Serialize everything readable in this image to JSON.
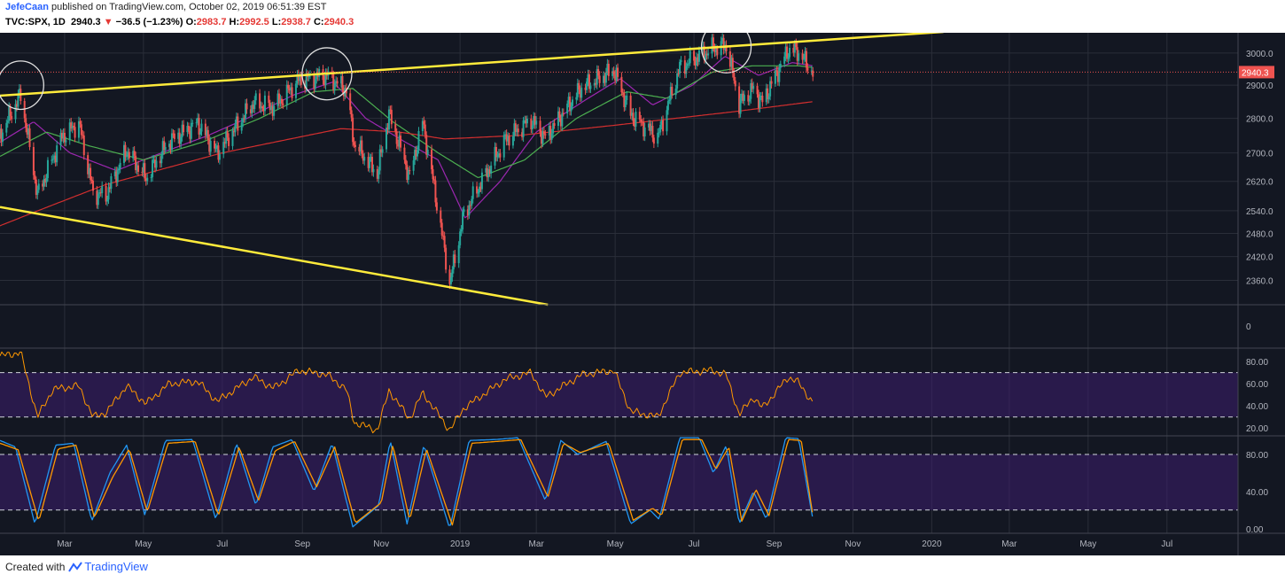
{
  "header": {
    "author": "JefeCaan",
    "published_text": "published on TradingView.com, October 02, 2019 06:51:39 EST",
    "symbol": "TVC:SPX, 1D",
    "last": "2940.3",
    "change": "−36.5 (−1.23%)",
    "o_label": "O:",
    "o": "2983.7",
    "h_label": "H:",
    "h": "2992.5",
    "l_label": "L:",
    "l": "2938.7",
    "c_label": "C:",
    "c": "2940.3"
  },
  "footer": {
    "created_with": "Created with",
    "brand": "TradingView"
  },
  "colors": {
    "background": "#131722",
    "grid": "#2a2e39",
    "up": "#26a69a",
    "down": "#ef5350",
    "trendline": "#ffeb3b",
    "ma_fast": "#9c27b0",
    "ma_mid": "#4caf50",
    "ma_slow": "#d32f2f",
    "rsi": "#ff9800",
    "stoch_k": "#2196f3",
    "stoch_d": "#ff9800",
    "band": "#3c1e6e"
  },
  "chart_data": {
    "type": "candlestick",
    "symbol": "TVC:SPX",
    "interval": "1D",
    "x_ticks": [
      "Mar",
      "May",
      "Jul",
      "Sep",
      "Nov",
      "2019",
      "Mar",
      "May",
      "Jul",
      "Sep",
      "Nov",
      "2020",
      "Mar",
      "May",
      "Jul"
    ],
    "x_tick_dates": [
      "2018-03-01",
      "2018-05-01",
      "2018-07-01",
      "2018-09-01",
      "2018-11-01",
      "2019-01-01",
      "2019-03-01",
      "2019-05-01",
      "2019-07-01",
      "2019-09-01",
      "2019-11-01",
      "2020-01-01",
      "2020-03-01",
      "2020-05-01",
      "2020-07-01"
    ],
    "x_range": [
      "2018-01-10",
      "2020-08-25"
    ],
    "price_axis": {
      "ticks": [
        "3000.0",
        "2900.0",
        "2800.0",
        "2700.0",
        "2620.0",
        "2540.0",
        "2480.0",
        "2420.0",
        "2360.0"
      ],
      "range": [
        2300,
        3065
      ],
      "scale": "log"
    },
    "last_price_label": "2940.3",
    "price_path": [
      [
        "2018-01-10",
        2750
      ],
      [
        "2018-01-26",
        2872
      ],
      [
        "2018-02-08",
        2582
      ],
      [
        "2018-02-27",
        2745
      ],
      [
        "2018-03-12",
        2786
      ],
      [
        "2018-03-23",
        2588
      ],
      [
        "2018-04-02",
        2581
      ],
      [
        "2018-04-18",
        2708
      ],
      [
        "2018-05-03",
        2629
      ],
      [
        "2018-05-21",
        2733
      ],
      [
        "2018-06-12",
        2786
      ],
      [
        "2018-06-27",
        2699
      ],
      [
        "2018-07-25",
        2846
      ],
      [
        "2018-08-10",
        2833
      ],
      [
        "2018-08-29",
        2914
      ],
      [
        "2018-09-20",
        2930
      ],
      [
        "2018-10-05",
        2885
      ],
      [
        "2018-10-11",
        2728
      ],
      [
        "2018-10-29",
        2641
      ],
      [
        "2018-11-07",
        2813
      ],
      [
        "2018-11-23",
        2632
      ],
      [
        "2018-12-03",
        2790
      ],
      [
        "2018-12-24",
        2351
      ],
      [
        "2019-01-04",
        2531
      ],
      [
        "2019-02-05",
        2737
      ],
      [
        "2019-02-25",
        2796
      ],
      [
        "2019-03-08",
        2743
      ],
      [
        "2019-04-05",
        2892
      ],
      [
        "2019-04-30",
        2946
      ],
      [
        "2019-05-13",
        2811
      ],
      [
        "2019-06-03",
        2744
      ],
      [
        "2019-06-20",
        2954
      ],
      [
        "2019-07-15",
        3014
      ],
      [
        "2019-07-26",
        3025
      ],
      [
        "2019-08-05",
        2844
      ],
      [
        "2019-08-16",
        2889
      ],
      [
        "2019-08-23",
        2847
      ],
      [
        "2019-09-12",
        3009
      ],
      [
        "2019-09-19",
        3006
      ],
      [
        "2019-10-01",
        2940
      ]
    ],
    "moving_averages": [
      {
        "period": 20,
        "values": [
          [
            "2018-01-10",
            2730
          ],
          [
            "2018-02-05",
            2790
          ],
          [
            "2018-03-05",
            2700
          ],
          [
            "2018-04-10",
            2650
          ],
          [
            "2018-05-15",
            2700
          ],
          [
            "2018-06-20",
            2750
          ],
          [
            "2018-07-20",
            2800
          ],
          [
            "2018-08-25",
            2870
          ],
          [
            "2018-09-25",
            2910
          ],
          [
            "2018-10-20",
            2800
          ],
          [
            "2018-11-20",
            2730
          ],
          [
            "2018-12-15",
            2680
          ],
          [
            "2019-01-05",
            2520
          ],
          [
            "2019-02-01",
            2620
          ],
          [
            "2019-03-01",
            2760
          ],
          [
            "2019-04-10",
            2860
          ],
          [
            "2019-05-05",
            2920
          ],
          [
            "2019-05-30",
            2840
          ],
          [
            "2019-06-30",
            2900
          ],
          [
            "2019-07-25",
            2990
          ],
          [
            "2019-08-20",
            2930
          ],
          [
            "2019-09-15",
            2970
          ],
          [
            "2019-10-01",
            2960
          ]
        ]
      },
      {
        "period": 50,
        "values": [
          [
            "2018-01-10",
            2690
          ],
          [
            "2018-02-15",
            2760
          ],
          [
            "2018-03-20",
            2720
          ],
          [
            "2018-05-01",
            2680
          ],
          [
            "2018-06-15",
            2730
          ],
          [
            "2018-07-30",
            2800
          ],
          [
            "2018-09-10",
            2880
          ],
          [
            "2018-10-10",
            2890
          ],
          [
            "2018-11-10",
            2790
          ],
          [
            "2018-12-15",
            2700
          ],
          [
            "2019-01-15",
            2630
          ],
          [
            "2019-02-20",
            2680
          ],
          [
            "2019-04-01",
            2800
          ],
          [
            "2019-05-10",
            2880
          ],
          [
            "2019-06-10",
            2860
          ],
          [
            "2019-07-15",
            2940
          ],
          [
            "2019-08-15",
            2960
          ],
          [
            "2019-09-20",
            2960
          ],
          [
            "2019-10-01",
            2955
          ]
        ]
      },
      {
        "period": 200,
        "values": [
          [
            "2018-01-10",
            2500
          ],
          [
            "2018-04-01",
            2610
          ],
          [
            "2018-07-01",
            2700
          ],
          [
            "2018-10-01",
            2770
          ],
          [
            "2018-11-15",
            2760
          ],
          [
            "2018-12-20",
            2740
          ],
          [
            "2019-02-15",
            2750
          ],
          [
            "2019-05-01",
            2780
          ],
          [
            "2019-08-01",
            2820
          ],
          [
            "2019-10-01",
            2850
          ]
        ]
      }
    ],
    "trendlines": [
      {
        "from": [
          "2018-01-10",
          2868
        ],
        "to": [
          "2020-01-10",
          3068
        ]
      },
      {
        "from": [
          "2018-01-10",
          2550
        ],
        "to": [
          "2019-03-10",
          2300
        ]
      }
    ],
    "annotations": [
      "circle ~2018-01-26 top",
      "circle ~2018-09-20 top",
      "circle ~2019-07-26 top"
    ],
    "volume_pane": {
      "ticks": [
        "0"
      ]
    },
    "rsi": {
      "ticks": [
        "80.00",
        "60.00",
        "40.00",
        "20.00"
      ],
      "range": [
        13,
        92
      ],
      "band": [
        30,
        70
      ],
      "values": [
        [
          "2018-01-10",
          85
        ],
        [
          "2018-01-26",
          88
        ],
        [
          "2018-02-08",
          30
        ],
        [
          "2018-02-20",
          55
        ],
        [
          "2018-03-12",
          58
        ],
        [
          "2018-03-23",
          30
        ],
        [
          "2018-04-02",
          34
        ],
        [
          "2018-04-18",
          58
        ],
        [
          "2018-05-03",
          42
        ],
        [
          "2018-05-21",
          60
        ],
        [
          "2018-06-12",
          62
        ],
        [
          "2018-06-27",
          44
        ],
        [
          "2018-07-25",
          66
        ],
        [
          "2018-08-10",
          56
        ],
        [
          "2018-08-29",
          72
        ],
        [
          "2018-09-20",
          68
        ],
        [
          "2018-10-05",
          55
        ],
        [
          "2018-10-11",
          25
        ],
        [
          "2018-10-29",
          18
        ],
        [
          "2018-11-07",
          54
        ],
        [
          "2018-11-23",
          28
        ],
        [
          "2018-12-03",
          52
        ],
        [
          "2018-12-24",
          18
        ],
        [
          "2019-01-04",
          38
        ],
        [
          "2019-02-05",
          64
        ],
        [
          "2019-02-25",
          70
        ],
        [
          "2019-03-08",
          48
        ],
        [
          "2019-04-05",
          68
        ],
        [
          "2019-04-30",
          72
        ],
        [
          "2019-05-13",
          35
        ],
        [
          "2019-06-03",
          30
        ],
        [
          "2019-06-20",
          70
        ],
        [
          "2019-07-15",
          72
        ],
        [
          "2019-07-26",
          68
        ],
        [
          "2019-08-05",
          32
        ],
        [
          "2019-08-16",
          48
        ],
        [
          "2019-08-23",
          38
        ],
        [
          "2019-09-12",
          66
        ],
        [
          "2019-09-19",
          62
        ],
        [
          "2019-10-01",
          43
        ]
      ]
    },
    "stochastic": {
      "ticks": [
        "80.00",
        "40.00",
        "0.00"
      ],
      "range": [
        -5,
        100
      ],
      "band": [
        20,
        80
      ],
      "k": [
        [
          "2018-01-10",
          95
        ],
        [
          "2018-01-22",
          88
        ],
        [
          "2018-02-06",
          5
        ],
        [
          "2018-02-22",
          90
        ],
        [
          "2018-03-08",
          92
        ],
        [
          "2018-03-22",
          8
        ],
        [
          "2018-04-05",
          60
        ],
        [
          "2018-04-18",
          90
        ],
        [
          "2018-05-02",
          15
        ],
        [
          "2018-05-18",
          95
        ],
        [
          "2018-06-08",
          96
        ],
        [
          "2018-06-26",
          10
        ],
        [
          "2018-07-12",
          92
        ],
        [
          "2018-07-27",
          25
        ],
        [
          "2018-08-09",
          88
        ],
        [
          "2018-08-24",
          96
        ],
        [
          "2018-09-10",
          40
        ],
        [
          "2018-09-24",
          92
        ],
        [
          "2018-10-10",
          2
        ],
        [
          "2018-10-30",
          25
        ],
        [
          "2018-11-08",
          95
        ],
        [
          "2018-11-21",
          5
        ],
        [
          "2018-12-04",
          90
        ],
        [
          "2018-12-24",
          0
        ],
        [
          "2019-01-08",
          95
        ],
        [
          "2019-01-28",
          96
        ],
        [
          "2019-02-15",
          98
        ],
        [
          "2019-03-08",
          30
        ],
        [
          "2019-03-20",
          95
        ],
        [
          "2019-04-02",
          80
        ],
        [
          "2019-04-24",
          94
        ],
        [
          "2019-05-13",
          5
        ],
        [
          "2019-05-28",
          20
        ],
        [
          "2019-06-04",
          10
        ],
        [
          "2019-06-20",
          98
        ],
        [
          "2019-07-05",
          98
        ],
        [
          "2019-07-16",
          60
        ],
        [
          "2019-07-26",
          90
        ],
        [
          "2019-08-05",
          5
        ],
        [
          "2019-08-16",
          40
        ],
        [
          "2019-08-26",
          10
        ],
        [
          "2019-09-10",
          98
        ],
        [
          "2019-09-20",
          97
        ],
        [
          "2019-10-01",
          10
        ]
      ],
      "d": [
        [
          "2018-01-10",
          92
        ],
        [
          "2018-01-24",
          85
        ],
        [
          "2018-02-09",
          8
        ],
        [
          "2018-02-24",
          86
        ],
        [
          "2018-03-10",
          90
        ],
        [
          "2018-03-24",
          12
        ],
        [
          "2018-04-07",
          55
        ],
        [
          "2018-04-20",
          86
        ],
        [
          "2018-05-04",
          18
        ],
        [
          "2018-05-20",
          92
        ],
        [
          "2018-06-10",
          94
        ],
        [
          "2018-06-28",
          14
        ],
        [
          "2018-07-14",
          88
        ],
        [
          "2018-07-29",
          30
        ],
        [
          "2018-08-11",
          84
        ],
        [
          "2018-08-26",
          94
        ],
        [
          "2018-09-12",
          45
        ],
        [
          "2018-09-26",
          88
        ],
        [
          "2018-10-12",
          6
        ],
        [
          "2018-11-01",
          28
        ],
        [
          "2018-11-10",
          90
        ],
        [
          "2018-11-23",
          9
        ],
        [
          "2018-12-06",
          86
        ],
        [
          "2018-12-26",
          4
        ],
        [
          "2019-01-10",
          92
        ],
        [
          "2019-01-30",
          94
        ],
        [
          "2019-02-17",
          96
        ],
        [
          "2019-03-10",
          34
        ],
        [
          "2019-03-22",
          92
        ],
        [
          "2019-04-04",
          82
        ],
        [
          "2019-04-26",
          92
        ],
        [
          "2019-05-15",
          9
        ],
        [
          "2019-05-30",
          22
        ],
        [
          "2019-06-06",
          14
        ],
        [
          "2019-06-22",
          96
        ],
        [
          "2019-07-07",
          96
        ],
        [
          "2019-07-18",
          64
        ],
        [
          "2019-07-28",
          88
        ],
        [
          "2019-08-07",
          8
        ],
        [
          "2019-08-18",
          42
        ],
        [
          "2019-08-28",
          14
        ],
        [
          "2019-09-12",
          96
        ],
        [
          "2019-09-22",
          95
        ],
        [
          "2019-10-01",
          14
        ]
      ]
    }
  }
}
